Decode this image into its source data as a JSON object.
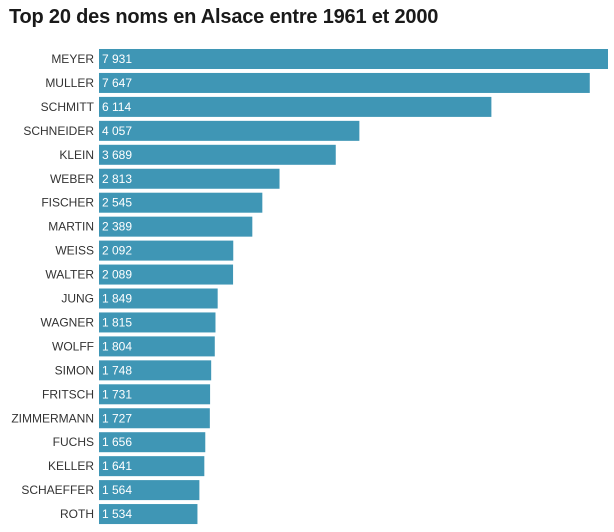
{
  "chart_data": {
    "type": "bar",
    "orientation": "horizontal",
    "title": "Top 20 des noms en Alsace entre 1961 et 2000",
    "categories": [
      "MEYER",
      "MULLER",
      "SCHMITT",
      "SCHNEIDER",
      "KLEIN",
      "WEBER",
      "FISCHER",
      "MARTIN",
      "WEISS",
      "WALTER",
      "JUNG",
      "WAGNER",
      "WOLFF",
      "SIMON",
      "FRITSCH",
      "ZIMMERMANN",
      "FUCHS",
      "KELLER",
      "SCHAEFFER",
      "ROTH"
    ],
    "values": [
      7931,
      7647,
      6114,
      4057,
      3689,
      2813,
      2545,
      2389,
      2092,
      2089,
      1849,
      1815,
      1804,
      1748,
      1731,
      1727,
      1656,
      1641,
      1564,
      1534
    ],
    "value_labels": [
      "7 931",
      "7 647",
      "6 114",
      "4 057",
      "3 689",
      "2 813",
      "2 545",
      "2 389",
      "2 092",
      "2 089",
      "1 849",
      "1 815",
      "1 804",
      "1 748",
      "1 731",
      "1 727",
      "1 656",
      "1 641",
      "1 564",
      "1 534"
    ],
    "xlim": [
      0,
      7931
    ],
    "grid": false,
    "legend": "none",
    "bar_color": "#3f96b5"
  }
}
